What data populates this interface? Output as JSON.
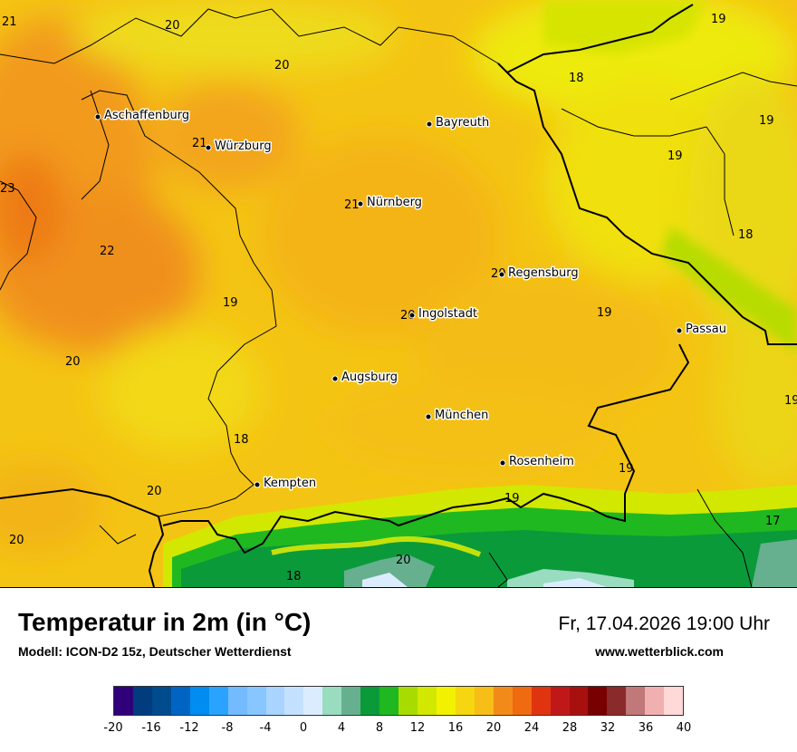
{
  "title": "Temperatur in 2m (in °C)",
  "model": "Modell: ICON-D2 15z, Deutscher Wetterdienst",
  "datetime": "Fr, 17.04.2026 19:00 Uhr",
  "website": "www.wetterblick.com",
  "colors": {
    "orange_hot": "#f08a1a",
    "orange": "#f6ae18",
    "yellow_orange": "#f5c410",
    "yellow": "#eedc1a",
    "light_yellow": "#f2f200",
    "lime": "#d2e800",
    "green": "#20b820",
    "dark_green": "#0a9a3a",
    "teal": "#66b090",
    "snow": "#d8ecff",
    "border": "#000000"
  },
  "cities": [
    {
      "name": "Aschaffenburg"
    },
    {
      "name": "Würzburg"
    },
    {
      "name": "Bayreuth"
    },
    {
      "name": "Nürnberg"
    },
    {
      "name": "Regensburg"
    },
    {
      "name": "Ingolstadt"
    },
    {
      "name": "Passau"
    },
    {
      "name": "Augsburg"
    },
    {
      "name": "München"
    },
    {
      "name": "Rosenheim"
    },
    {
      "name": "Kempten"
    }
  ],
  "temperatures": [
    {
      "value": "21"
    },
    {
      "value": "20"
    },
    {
      "value": "20"
    },
    {
      "value": "19"
    },
    {
      "value": "18"
    },
    {
      "value": "19"
    },
    {
      "value": "19"
    },
    {
      "value": "21"
    },
    {
      "value": "23"
    },
    {
      "value": "21"
    },
    {
      "value": "18"
    },
    {
      "value": "22"
    },
    {
      "value": "20"
    },
    {
      "value": "19"
    },
    {
      "value": "20"
    },
    {
      "value": "19"
    },
    {
      "value": "20"
    },
    {
      "value": "19"
    },
    {
      "value": "18"
    },
    {
      "value": "19"
    },
    {
      "value": "20"
    },
    {
      "value": "19"
    },
    {
      "value": "20"
    },
    {
      "value": "17"
    },
    {
      "value": "20"
    },
    {
      "value": "18"
    }
  ],
  "legend": {
    "colors": [
      "#30007a",
      "#003c7e",
      "#004a8e",
      "#0064c2",
      "#008cf0",
      "#29a3ff",
      "#73baff",
      "#88c6ff",
      "#a8d4ff",
      "#c4e0ff",
      "#dcecff",
      "#99dcc0",
      "#66b090",
      "#0a9a3a",
      "#20b820",
      "#a8dc00",
      "#d2e800",
      "#f2f200",
      "#f5d610",
      "#f6be16",
      "#f28a1a",
      "#f06a10",
      "#e03410",
      "#c01818",
      "#a81010",
      "#780000",
      "#8a2a2a",
      "#c07878",
      "#f0b0b0",
      "#ffd8d8"
    ],
    "ticks": [
      "-20",
      "-16",
      "-12",
      "-8",
      "-4",
      "0",
      "4",
      "8",
      "12",
      "16",
      "20",
      "24",
      "28",
      "32",
      "36",
      "40"
    ]
  }
}
